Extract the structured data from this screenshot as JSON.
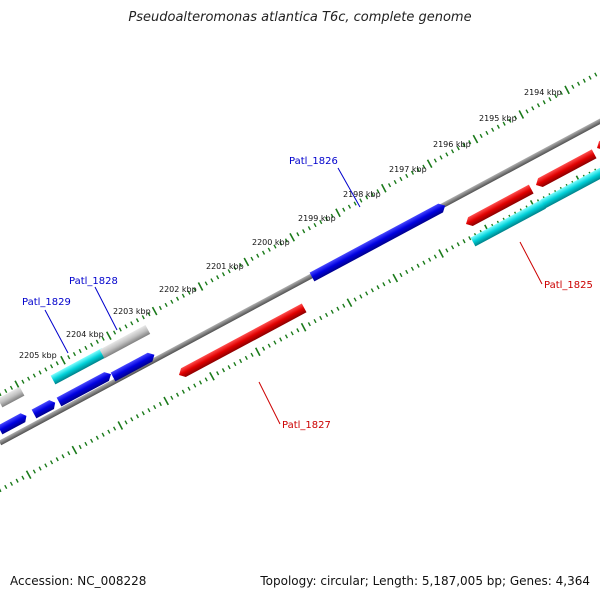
{
  "title": "Pseudoalteromonas atlantica T6c, complete genome",
  "footer": {
    "accession": "Accession: NC_008228",
    "topology": "Topology: circular; Length: 5,187,005 bp; Genes: 4,364"
  },
  "colors": {
    "plus_strand": "#0000e0",
    "minus_strand": "#e00000",
    "other_gene": "#00c8d2",
    "pseudo_gene": "#bbbbbb",
    "backbone": "#808080",
    "scale_ticks": "#1a7a1a",
    "label_plus": "#0000cc",
    "label_minus": "#cc0000"
  },
  "scale_labels": [
    "2194 kbp",
    "2195 kbp",
    "2196 kbp",
    "2197 kbp",
    "2198 kbp",
    "2199 kbp",
    "2200 kbp",
    "2201 kbp",
    "2202 kbp",
    "2203 kbp",
    "2204 kbp",
    "2205 kbp"
  ],
  "genes": [
    {
      "name": "Patl_1826",
      "strand": "plus",
      "type": "cds"
    },
    {
      "name": "Patl_1828",
      "strand": "plus",
      "type": "cds"
    },
    {
      "name": "Patl_1829",
      "strand": "plus",
      "type": "cds"
    },
    {
      "name": "Patl_1825",
      "strand": "minus",
      "type": "cds"
    },
    {
      "name": "Patl_1827",
      "strand": "minus",
      "type": "cds"
    }
  ]
}
